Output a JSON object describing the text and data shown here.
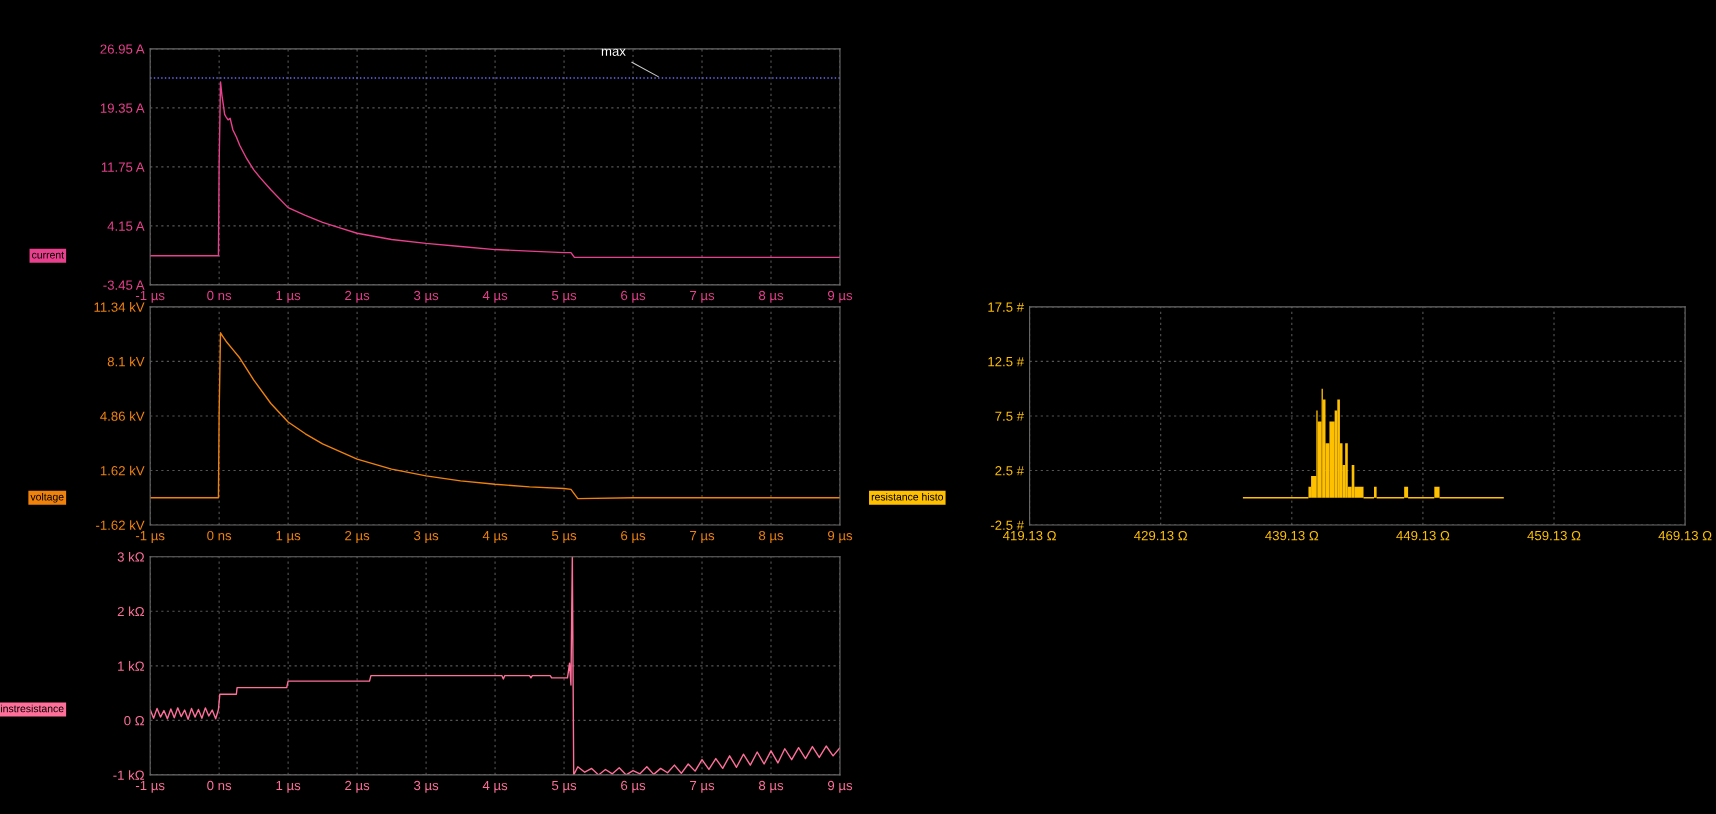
{
  "chart_data": [
    {
      "type": "line",
      "xlim": [
        -1,
        9
      ],
      "ylim": [
        -3.45,
        26.95
      ],
      "xticks": [
        {
          "value": -1,
          "label": "-1 µs"
        },
        {
          "value": 0,
          "label": "0 ns"
        },
        {
          "value": 1,
          "label": "1 µs"
        },
        {
          "value": 2,
          "label": "2 µs"
        },
        {
          "value": 3,
          "label": "3 µs"
        },
        {
          "value": 4,
          "label": "4 µs"
        },
        {
          "value": 5,
          "label": "5 µs"
        },
        {
          "value": 6,
          "label": "6 µs"
        },
        {
          "value": 7,
          "label": "7 µs"
        },
        {
          "value": 8,
          "label": "8 µs"
        },
        {
          "value": 9,
          "label": "9 µs"
        }
      ],
      "yticks": [
        {
          "value": -3.45,
          "label": "-3.45 A"
        },
        {
          "value": 4.15,
          "label": "4.15 A"
        },
        {
          "value": 11.75,
          "label": "11.75 A"
        },
        {
          "value": 19.35,
          "label": "19.35 A"
        },
        {
          "value": 26.95,
          "label": "26.95 A"
        }
      ],
      "grid": true,
      "legend": false,
      "ref_lines": [
        {
          "axis": "y",
          "value": 23.2,
          "label": "max",
          "color": "#6a6aff",
          "line_style": "dotted"
        }
      ],
      "series": [
        {
          "name": "current",
          "color": "#e8408c",
          "x": [
            -1,
            -0.01,
            0.0,
            0.02,
            0.04,
            0.06,
            0.08,
            0.1,
            0.13,
            0.16,
            0.2,
            0.25,
            0.3,
            0.4,
            0.5,
            0.6,
            0.75,
            1.0,
            1.25,
            1.5,
            1.75,
            2.0,
            2.5,
            3.0,
            3.5,
            4.0,
            4.5,
            5.0,
            5.1,
            5.15,
            6,
            7,
            8,
            9
          ],
          "values": [
            0.3,
            0.3,
            12,
            22.7,
            21.0,
            19.8,
            18.5,
            18.2,
            17.8,
            18.0,
            16.5,
            15.6,
            14.5,
            12.8,
            11.4,
            10.3,
            8.8,
            6.5,
            5.5,
            4.6,
            3.9,
            3.2,
            2.4,
            1.9,
            1.5,
            1.1,
            0.9,
            0.7,
            0.7,
            0.1,
            0.1,
            0.1,
            0.1,
            0.1
          ]
        }
      ]
    },
    {
      "type": "line",
      "xlim": [
        -1,
        9
      ],
      "ylim": [
        -1.62,
        11.34
      ],
      "xticks": [
        {
          "value": -1,
          "label": "-1 µs"
        },
        {
          "value": 0,
          "label": "0 ns"
        },
        {
          "value": 1,
          "label": "1 µs"
        },
        {
          "value": 2,
          "label": "2 µs"
        },
        {
          "value": 3,
          "label": "3 µs"
        },
        {
          "value": 4,
          "label": "4 µs"
        },
        {
          "value": 5,
          "label": "5 µs"
        },
        {
          "value": 6,
          "label": "6 µs"
        },
        {
          "value": 7,
          "label": "7 µs"
        },
        {
          "value": 8,
          "label": "8 µs"
        },
        {
          "value": 9,
          "label": "9 µs"
        }
      ],
      "yticks": [
        {
          "value": -1.62,
          "label": "-1.62 kV"
        },
        {
          "value": 1.62,
          "label": "1.62 kV"
        },
        {
          "value": 4.86,
          "label": "4.86 kV"
        },
        {
          "value": 8.1,
          "label": "8.1 kV"
        },
        {
          "value": 11.34,
          "label": "11.34 kV"
        }
      ],
      "grid": true,
      "legend": false,
      "series": [
        {
          "name": "voltage",
          "color": "#f0820c",
          "x": [
            -1,
            -0.01,
            0.0,
            0.02,
            0.05,
            0.1,
            0.2,
            0.3,
            0.5,
            0.75,
            1.0,
            1.25,
            1.5,
            2.0,
            2.5,
            3.0,
            3.5,
            4.0,
            4.5,
            5.0,
            5.1,
            5.2,
            6,
            7,
            8,
            9
          ],
          "values": [
            0,
            0,
            5,
            9.8,
            9.6,
            9.3,
            8.8,
            8.3,
            7.0,
            5.6,
            4.5,
            3.8,
            3.2,
            2.3,
            1.7,
            1.3,
            1.0,
            0.8,
            0.65,
            0.55,
            0.5,
            -0.05,
            0,
            0,
            0,
            0
          ]
        }
      ]
    },
    {
      "type": "line",
      "xlim": [
        -1,
        9
      ],
      "ylim": [
        -1000,
        3000
      ],
      "xticks": [
        {
          "value": -1,
          "label": "-1 µs"
        },
        {
          "value": 0,
          "label": "0 ns"
        },
        {
          "value": 1,
          "label": "1 µs"
        },
        {
          "value": 2,
          "label": "2 µs"
        },
        {
          "value": 3,
          "label": "3 µs"
        },
        {
          "value": 4,
          "label": "4 µs"
        },
        {
          "value": 5,
          "label": "5 µs"
        },
        {
          "value": 6,
          "label": "6 µs"
        },
        {
          "value": 7,
          "label": "7 µs"
        },
        {
          "value": 8,
          "label": "8 µs"
        },
        {
          "value": 9,
          "label": "9 µs"
        }
      ],
      "yticks": [
        {
          "value": -1000,
          "label": "-1 kΩ"
        },
        {
          "value": 0,
          "label": "0 Ω"
        },
        {
          "value": 1000,
          "label": "1 kΩ"
        },
        {
          "value": 2000,
          "label": "2 kΩ"
        },
        {
          "value": 3000,
          "label": "3 kΩ"
        }
      ],
      "grid": true,
      "legend": false,
      "series": [
        {
          "name": "instresistance",
          "color": "#ff6f9a",
          "x": [
            -1,
            -0.95,
            -0.9,
            -0.85,
            -0.8,
            -0.75,
            -0.7,
            -0.65,
            -0.6,
            -0.55,
            -0.5,
            -0.45,
            -0.4,
            -0.35,
            -0.3,
            -0.25,
            -0.2,
            -0.15,
            -0.1,
            -0.05,
            -0.01,
            0.01,
            0.25,
            0.26,
            0.98,
            1.0,
            2.18,
            2.2,
            4.1,
            4.12,
            4.14,
            4.5,
            4.52,
            4.54,
            4.8,
            4.82,
            5.05,
            5.08,
            5.1,
            5.12,
            5.14,
            5.2,
            5.3,
            5.4,
            5.5,
            5.6,
            5.7,
            5.8,
            5.9,
            6.0,
            6.1,
            6.2,
            6.3,
            6.4,
            6.5,
            6.6,
            6.7,
            6.8,
            6.9,
            7.0,
            7.1,
            7.2,
            7.3,
            7.4,
            7.5,
            7.6,
            7.7,
            7.8,
            7.9,
            8.0,
            8.1,
            8.2,
            8.3,
            8.4,
            8.5,
            8.6,
            8.7,
            8.8,
            8.9,
            9.0
          ],
          "values": [
            200,
            40,
            220,
            60,
            180,
            30,
            210,
            50,
            230,
            70,
            190,
            20,
            220,
            60,
            200,
            40,
            230,
            80,
            190,
            30,
            200,
            480,
            480,
            600,
            600,
            720,
            720,
            820,
            820,
            760,
            820,
            820,
            780,
            820,
            820,
            780,
            780,
            1050,
            650,
            3000,
            -1000,
            -850,
            -950,
            -880,
            -1000,
            -900,
            -980,
            -870,
            -1000,
            -920,
            -980,
            -850,
            -990,
            -880,
            -960,
            -820,
            -970,
            -800,
            -930,
            -720,
            -900,
            -700,
            -880,
            -650,
            -860,
            -620,
            -820,
            -580,
            -800,
            -560,
            -780,
            -520,
            -720,
            -500,
            -700,
            -480,
            -680,
            -470,
            -650,
            -500
          ]
        }
      ]
    },
    {
      "type": "histogram",
      "xlim": [
        419.13,
        469.13
      ],
      "ylim": [
        -2.5,
        17.5
      ],
      "xticks": [
        {
          "value": 419.13,
          "label": "419.13 Ω"
        },
        {
          "value": 429.13,
          "label": "429.13 Ω"
        },
        {
          "value": 439.13,
          "label": "439.13 Ω"
        },
        {
          "value": 449.13,
          "label": "449.13 Ω"
        },
        {
          "value": 459.13,
          "label": "459.13 Ω"
        },
        {
          "value": 469.13,
          "label": "469.13 Ω"
        }
      ],
      "yticks": [
        {
          "value": -2.5,
          "label": "-2.5 #"
        },
        {
          "value": 2.5,
          "label": "2.5 #"
        },
        {
          "value": 7.5,
          "label": "7.5 #"
        },
        {
          "value": 12.5,
          "label": "12.5 #"
        },
        {
          "value": 17.5,
          "label": "17.5 #"
        }
      ],
      "grid": true,
      "legend": false,
      "bins": [
        435.4,
        440.4,
        440.6,
        441.0,
        441.1,
        441.4,
        441.5,
        441.7,
        442.0,
        442.4,
        442.6,
        442.8,
        443.0,
        443.2,
        443.4,
        443.7,
        443.9,
        444.6,
        445.4,
        445.6,
        447.7,
        448.0,
        450.0,
        450.4,
        455.3
      ],
      "series": [
        {
          "name": "resistance histo",
          "color": "#ffc000",
          "values": [
            0,
            1,
            2,
            8,
            7,
            10,
            9,
            5,
            7,
            8,
            9,
            5,
            3,
            5,
            1,
            3,
            1,
            0,
            1,
            0,
            1,
            0,
            1,
            0
          ]
        }
      ]
    }
  ]
}
